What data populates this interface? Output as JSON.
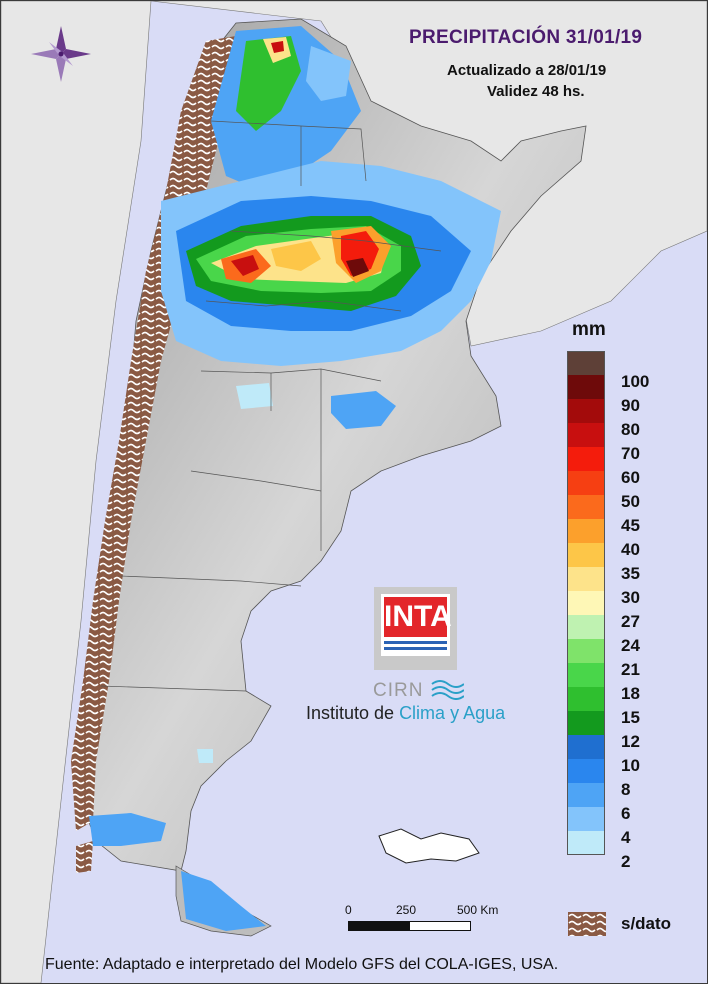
{
  "header": {
    "title": "PRECIPITACIÓN 31/01/19",
    "updated": "Actualizado a 28/01/19",
    "validity": "Validez 48 hs."
  },
  "legend": {
    "unit": "mm",
    "bins": [
      {
        "label": "100",
        "color": "#5e4037"
      },
      {
        "label": "90",
        "color": "#6e0a0a"
      },
      {
        "label": "80",
        "color": "#a30b0b"
      },
      {
        "label": "70",
        "color": "#c80f0f"
      },
      {
        "label": "60",
        "color": "#f41c0c"
      },
      {
        "label": "50",
        "color": "#f63f12"
      },
      {
        "label": "45",
        "color": "#fb6a1c"
      },
      {
        "label": "40",
        "color": "#fca02c"
      },
      {
        "label": "35",
        "color": "#fdc648"
      },
      {
        "label": "30",
        "color": "#fde38a"
      },
      {
        "label": "27",
        "color": "#fef7b6"
      },
      {
        "label": "24",
        "color": "#bff2b1"
      },
      {
        "label": "21",
        "color": "#7fe36a"
      },
      {
        "label": "18",
        "color": "#49d64a"
      },
      {
        "label": "15",
        "color": "#2fbf2f"
      },
      {
        "label": "12",
        "color": "#139a1e"
      },
      {
        "label": "10",
        "color": "#1f6fd0"
      },
      {
        "label": "8",
        "color": "#2a86ee"
      },
      {
        "label": "6",
        "color": "#4ea4f5"
      },
      {
        "label": "4",
        "color": "#83c4fb"
      },
      {
        "label": "2",
        "color": "#bfeaf9"
      }
    ],
    "nodata_label": "s/dato",
    "nodata_color": "#8a5a44"
  },
  "scale_bar": {
    "labels": [
      "0",
      "250",
      "500 Km"
    ]
  },
  "logo": {
    "brand": "INTA",
    "unit_acronym": "CIRN",
    "institute_prefix": "Instituto de ",
    "institute_accent": "Clima y Agua"
  },
  "footer": {
    "source": "Fuente: Adaptado e interpretado del Modelo GFS del COLA-IGES, USA."
  },
  "colors": {
    "ocean": "#d9dcf6",
    "land_other": "#e7e7e7",
    "terrain": "#bdbdbd",
    "title": "#4b1b6e"
  },
  "icons": [
    "compass-rose-icon",
    "cirn-waves-icon"
  ]
}
